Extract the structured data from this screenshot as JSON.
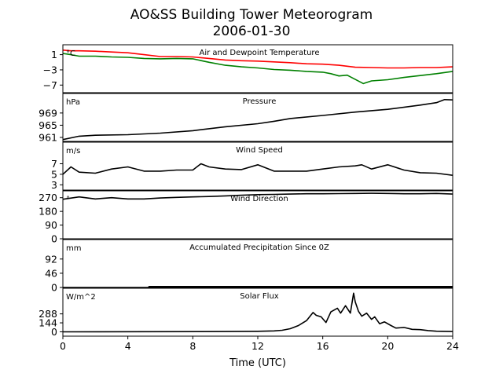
{
  "title_line1": "AO&SS Building Tower Meteorogram",
  "title_line2": "2006-01-30",
  "chart_data": {
    "type": "line",
    "title": "AO&SS Building Tower Meteorogram",
    "subtitle": "2006-01-30",
    "xlabel": "Time (UTC)",
    "xlim": [
      0,
      24
    ],
    "xticks": [
      0,
      4,
      8,
      12,
      16,
      20,
      24
    ],
    "grid": false,
    "panels": [
      {
        "id": "temperature",
        "title": "Air and Dewpoint Temperature",
        "unit": "°C",
        "ylim": [
          -9,
          3.6
        ],
        "yticks": [
          1,
          -3,
          -7
        ],
        "series": [
          {
            "color": "#ff0000",
            "x": [
              0,
              0.5,
              1,
              2,
              3,
              4,
              5,
              6,
              7,
              8,
              9,
              10,
              11,
              12,
              13,
              14,
              15,
              16,
              17,
              18,
              19,
              20,
              21,
              22,
              23,
              24
            ],
            "y": [
              2.2,
              2.0,
              2.0,
              1.9,
              1.7,
              1.5,
              1.0,
              0.5,
              0.5,
              0.4,
              0.0,
              -0.4,
              -0.6,
              -0.7,
              -0.9,
              -1.1,
              -1.4,
              -1.5,
              -1.8,
              -2.3,
              -2.4,
              -2.5,
              -2.5,
              -2.4,
              -2.4,
              -2.2
            ]
          },
          {
            "color": "#008000",
            "x": [
              0,
              0.5,
              1,
              2,
              3,
              4,
              5,
              6,
              7,
              8,
              9,
              10,
              11,
              12,
              13,
              14,
              15,
              16,
              16.5,
              17,
              17.5,
              18,
              18.5,
              19,
              20,
              21,
              22,
              23,
              24
            ],
            "y": [
              1.3,
              1.0,
              0.6,
              0.6,
              0.4,
              0.3,
              0.0,
              -0.1,
              0.0,
              -0.1,
              -1.0,
              -1.8,
              -2.2,
              -2.5,
              -2.9,
              -3.1,
              -3.4,
              -3.6,
              -4.0,
              -4.6,
              -4.4,
              -5.5,
              -6.6,
              -5.9,
              -5.6,
              -5.0,
              -4.5,
              -4.0,
              -3.4
            ]
          }
        ]
      },
      {
        "id": "pressure",
        "title": "Pressure",
        "unit": "hPa",
        "ylim": [
          959.7,
          975.4
        ],
        "yticks": [
          969,
          965,
          961
        ],
        "series": [
          {
            "color": "#000000",
            "x": [
              0,
              1,
              2,
              4,
              6,
              8,
              10,
              12,
              13,
              14,
              16,
              18,
              20,
              22,
              23,
              23.5,
              24
            ],
            "y": [
              960.3,
              961.4,
              961.7,
              961.9,
              962.4,
              963.2,
              964.5,
              965.5,
              966.3,
              967.2,
              968.2,
              969.3,
              970.2,
              971.6,
              972.4,
              973.4,
              973.3
            ]
          }
        ]
      },
      {
        "id": "wind_speed",
        "title": "Wind Speed",
        "unit": "m/s",
        "ylim": [
          2.0,
          11.1
        ],
        "yticks": [
          7,
          5,
          3
        ],
        "series": [
          {
            "color": "#000000",
            "x": [
              0,
              0.5,
              1,
              2,
              3,
              4,
              5,
              6,
              7,
              8,
              8.5,
              9,
              10,
              11,
              12,
              13,
              14,
              15,
              16,
              17,
              18,
              18.4,
              19,
              20,
              21,
              22,
              23,
              24
            ],
            "y": [
              5.0,
              6.4,
              5.4,
              5.2,
              6.0,
              6.4,
              5.6,
              5.6,
              5.8,
              5.8,
              7.0,
              6.4,
              6.0,
              5.9,
              6.8,
              5.6,
              5.6,
              5.6,
              6.0,
              6.4,
              6.6,
              6.8,
              6.0,
              6.8,
              5.8,
              5.3,
              5.2,
              4.8
            ]
          }
        ]
      },
      {
        "id": "wind_direction",
        "title": "Wind Direction",
        "unit": "°",
        "ylim": [
          0,
          315
        ],
        "yticks": [
          270,
          180,
          90,
          0
        ],
        "series": [
          {
            "color": "#000000",
            "x": [
              0,
              1,
              2,
              3,
              4,
              5,
              6,
              7,
              8,
              9,
              10,
              11,
              12,
              13,
              14,
              15,
              16,
              17,
              18,
              19,
              20,
              21,
              22,
              23,
              24
            ],
            "y": [
              260,
              275,
              262,
              270,
              262,
              262,
              268,
              272,
              275,
              278,
              282,
              286,
              290,
              292,
              294,
              296,
              296,
              297,
              298,
              299,
              298,
              296,
              296,
              298,
              294
            ]
          }
        ]
      },
      {
        "id": "precipitation",
        "title": "Accumulated Precipitation Since 0Z",
        "unit": "mm",
        "ylim": [
          0,
          155
        ],
        "yticks": [
          92,
          46,
          0
        ],
        "series": [
          {
            "color": "#000000",
            "x": [
              0,
              5.3,
              5.3,
              24
            ],
            "y": [
              0,
              0,
              3,
              3
            ]
          }
        ]
      },
      {
        "id": "solar_flux",
        "title": "Solar Flux",
        "unit": "W/m^2",
        "ylim": [
          -70,
          700
        ],
        "yticks": [
          288,
          144,
          0
        ],
        "series": [
          {
            "color": "#000000",
            "x": [
              0,
              5,
              10,
              12,
              13,
              13.5,
              14,
              14.5,
              15,
              15.4,
              15.6,
              15.9,
              16.2,
              16.5,
              16.9,
              17.1,
              17.4,
              17.7,
              17.9,
              18.0,
              18.2,
              18.4,
              18.7,
              19.0,
              19.2,
              19.5,
              19.8,
              20.2,
              20.5,
              21.0,
              21.5,
              22.0,
              22.5,
              23.0,
              24
            ],
            "y": [
              0,
              2,
              4,
              8,
              14,
              25,
              50,
              100,
              180,
              310,
              265,
              240,
              150,
              320,
              380,
              300,
              420,
              300,
              620,
              480,
              330,
              250,
              300,
              200,
              240,
              130,
              160,
              100,
              60,
              70,
              40,
              35,
              20,
              10,
              5
            ]
          }
        ]
      }
    ]
  }
}
